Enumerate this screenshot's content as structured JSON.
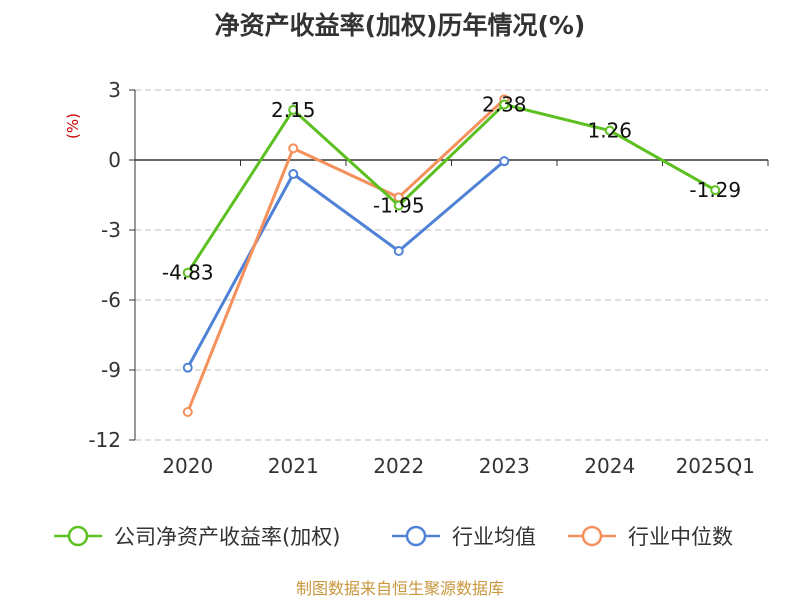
{
  "chart_data": {
    "type": "line",
    "title": "净资产收益率(加权)历年情况(%)",
    "ylabel": "(%)",
    "xlabel": "",
    "categories": [
      "2020",
      "2021",
      "2022",
      "2023",
      "2024",
      "2025Q1"
    ],
    "ylim": [
      -12,
      3
    ],
    "yticks": [
      3,
      0,
      -3,
      -6,
      -9,
      -12
    ],
    "grid": true,
    "legend_position": "bottom",
    "series": [
      {
        "name": "公司净资产收益率(加权)",
        "color": "#5cc021",
        "values": [
          -4.83,
          2.15,
          -1.95,
          2.38,
          1.26,
          -1.29
        ],
        "labels": [
          "-4.83",
          "2.15",
          "-1.95",
          "2.38",
          "1.26",
          "-1.29"
        ]
      },
      {
        "name": "行业均值",
        "color": "#4f81d6",
        "values": [
          -8.9,
          -0.6,
          -3.9,
          -0.05,
          null,
          null
        ]
      },
      {
        "name": "行业中位数",
        "color": "#f4905c",
        "values": [
          -10.8,
          0.5,
          -1.6,
          2.6,
          null,
          null
        ]
      }
    ],
    "source": "制图数据来自恒生聚源数据库"
  }
}
